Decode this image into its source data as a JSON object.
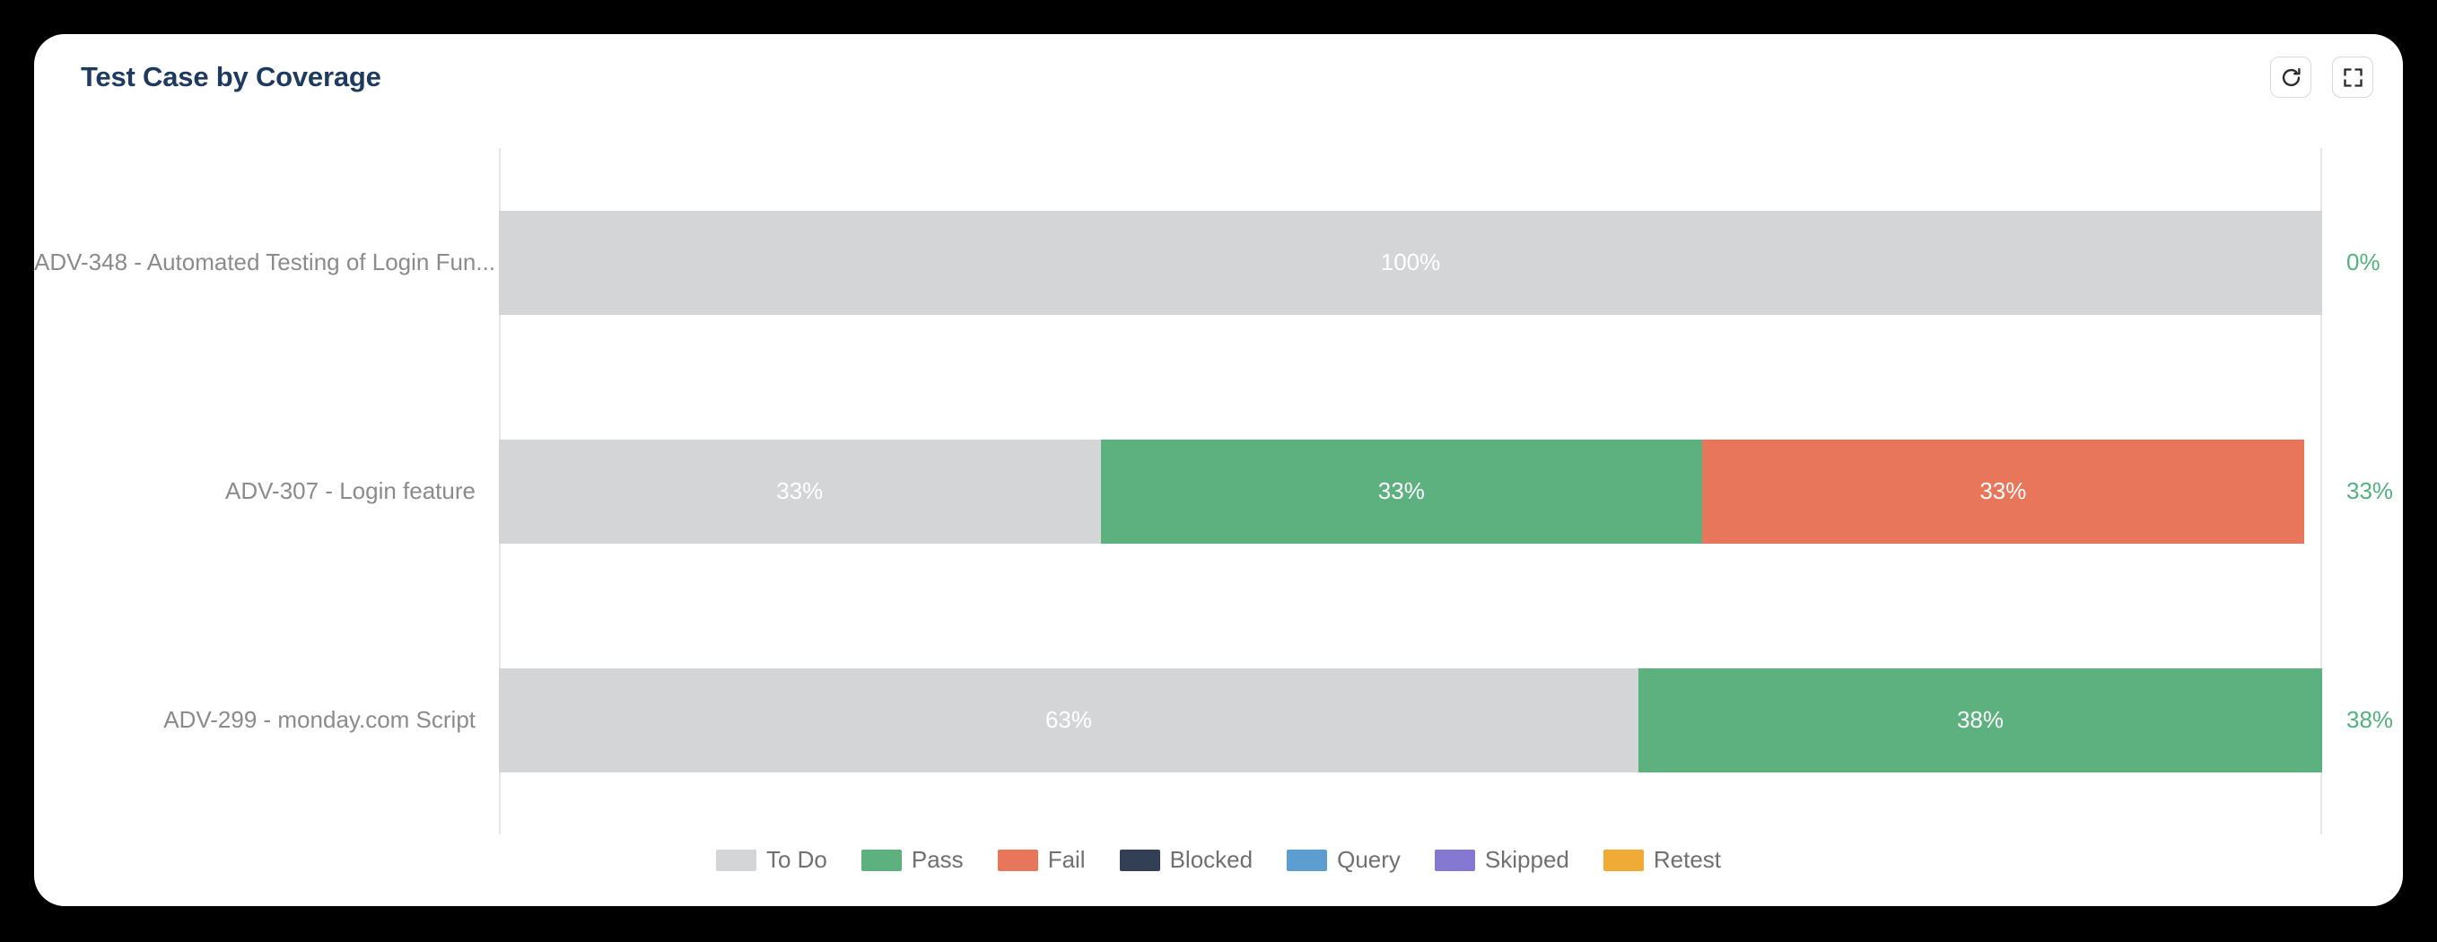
{
  "card": {
    "title": "Test Case by Coverage"
  },
  "toolbar": {
    "buttons": [
      {
        "name": "refresh",
        "icon": "refresh-icon"
      },
      {
        "name": "fullscreen",
        "icon": "fullscreen-icon"
      }
    ]
  },
  "colors": {
    "title": "#1e3a5e",
    "axis_label": "#8b8b8b",
    "coverage_label": "#53b17e",
    "legend_label": "#707070",
    "axis_line": "#e6e6e6",
    "segment_label": "#ffffff",
    "card_background": "#ffffff",
    "page_background": "#000000"
  },
  "chart_data": {
    "type": "bar",
    "orientation": "horizontal",
    "stacked": true,
    "unit": "%",
    "title": "Test Case by Coverage",
    "xlabel": "",
    "ylabel": "",
    "xlim": [
      0,
      100
    ],
    "grid": false,
    "legend_position": "bottom",
    "categories": [
      "ADV-348 - Automated Testing of Login Fun...",
      "ADV-307 - Login feature",
      "ADV-299 - monday.com Script"
    ],
    "rows": [
      {
        "category": "ADV-348 - Automated Testing of Login Fun...",
        "coverage_label": "0%",
        "segments": [
          {
            "status": "To Do",
            "label": "100%",
            "value": 100,
            "width_pct": 100,
            "color": "#d3d5d7"
          }
        ]
      },
      {
        "category": "ADV-307 - Login feature",
        "coverage_label": "33%",
        "segments": [
          {
            "status": "To Do",
            "label": "33%",
            "value": 33,
            "width_pct": 33,
            "color": "#d3d5d7"
          },
          {
            "status": "Pass",
            "label": "33%",
            "value": 33,
            "width_pct": 33,
            "color": "#5cb17f"
          },
          {
            "status": "Fail",
            "label": "33%",
            "value": 33,
            "width_pct": 33,
            "color": "#e7765b"
          }
        ]
      },
      {
        "category": "ADV-299 - monday.com Script",
        "coverage_label": "38%",
        "segments": [
          {
            "status": "To Do",
            "label": "63%",
            "value": 63,
            "width_pct": 62.5,
            "color": "#d3d5d7"
          },
          {
            "status": "Pass",
            "label": "38%",
            "value": 38,
            "width_pct": 37.5,
            "color": "#5cb17f"
          }
        ]
      }
    ],
    "legend": [
      {
        "label": "To Do",
        "color": "#d3d5d7"
      },
      {
        "label": "Pass",
        "color": "#5cb17f"
      },
      {
        "label": "Fail",
        "color": "#e7765b"
      },
      {
        "label": "Blocked",
        "color": "#333f54"
      },
      {
        "label": "Query",
        "color": "#5b9ecf"
      },
      {
        "label": "Skipped",
        "color": "#8478d2"
      },
      {
        "label": "Retest",
        "color": "#f0ab37"
      }
    ]
  }
}
